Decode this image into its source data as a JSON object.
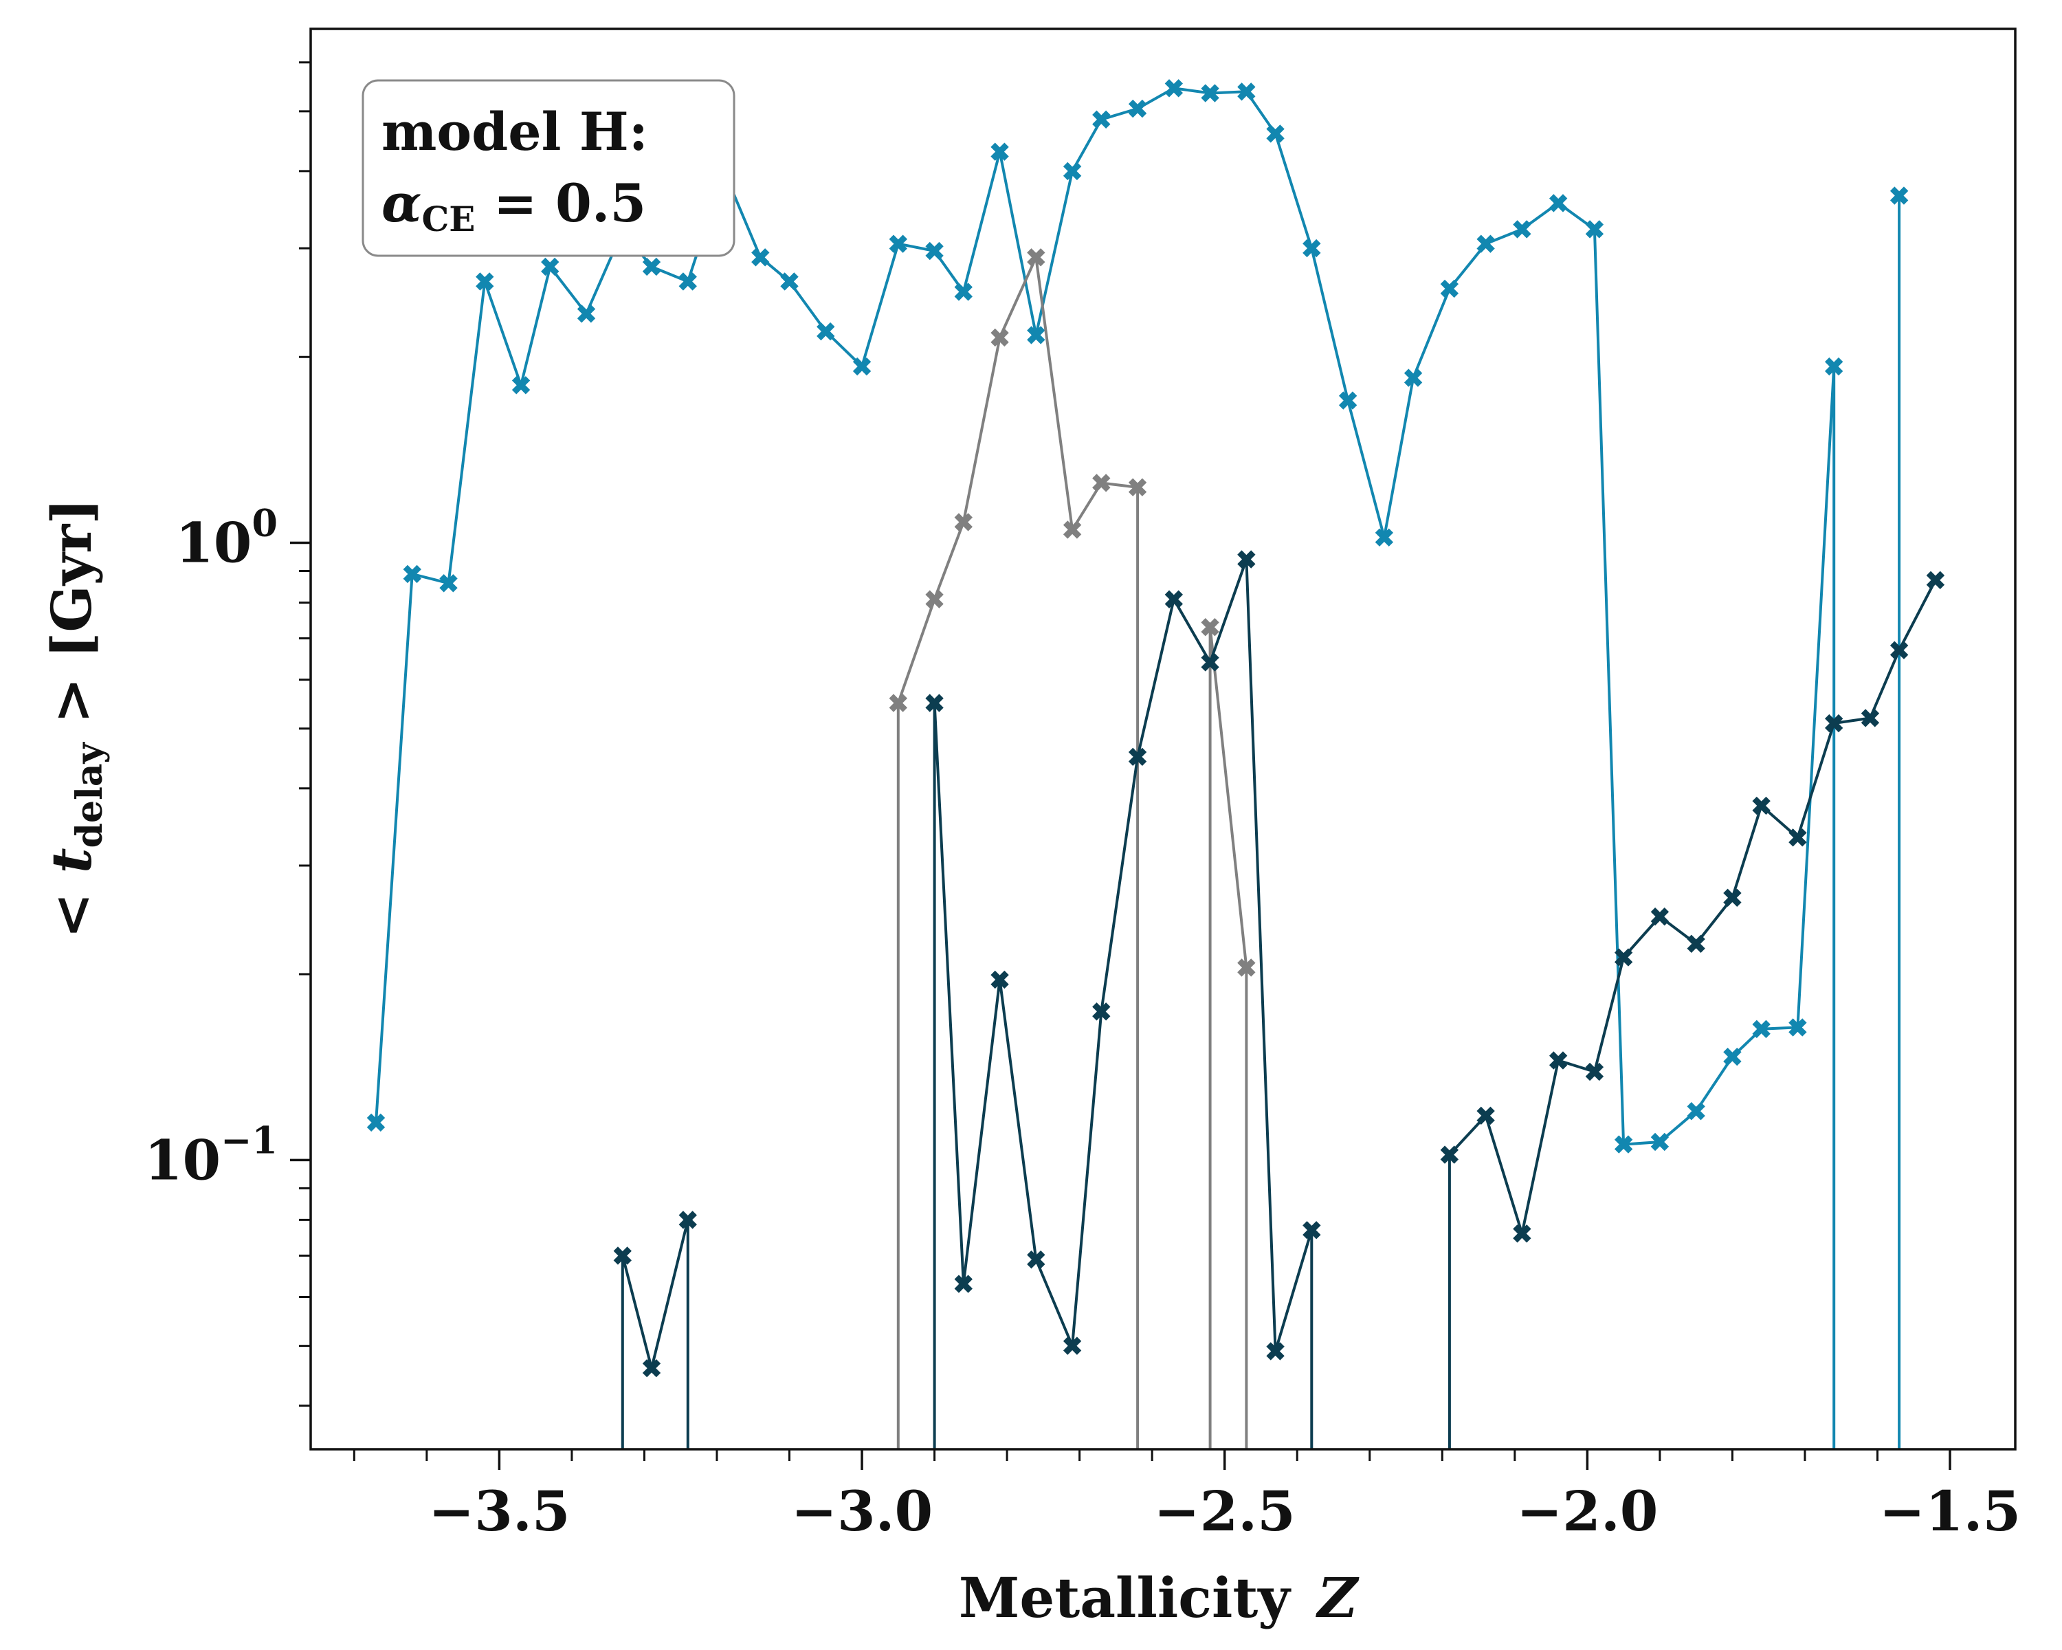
{
  "chart_data": {
    "type": "line",
    "xlabel": "Metallicity",
    "xlabel_symbol": "Z",
    "ylabel_prefix": "< t",
    "ylabel_sub": "delay",
    "ylabel_suffix": " >  [Gyr]",
    "y_scale": "log",
    "xlim": [
      -3.76,
      -1.41
    ],
    "ylim": [
      0.034,
      6.8
    ],
    "x_ticks": [
      {
        "value": -3.5,
        "label": "−3.5"
      },
      {
        "value": -3.0,
        "label": "−3.0"
      },
      {
        "value": -2.5,
        "label": "−2.5"
      },
      {
        "value": -2.0,
        "label": "−2.0"
      },
      {
        "value": -1.5,
        "label": "−1.5"
      }
    ],
    "y_ticks": [
      {
        "value": 1.0,
        "base": "10",
        "exp": "0"
      },
      {
        "value": 0.1,
        "base": "10",
        "exp": "−1"
      }
    ],
    "grid": false,
    "legend": {
      "placement": "top-left",
      "line1": "model H:",
      "line2_symbol": "α",
      "line2_sub": "CE",
      "line2_rest": " = 0.5"
    },
    "series": [
      {
        "color": "#1287b0",
        "points": [
          [
            -3.67,
            0.115
          ],
          [
            -3.62,
            0.89
          ],
          [
            -3.57,
            0.86
          ],
          [
            -3.52,
            2.65
          ],
          [
            -3.47,
            1.8
          ],
          [
            -3.43,
            2.8
          ],
          [
            -3.38,
            2.35
          ],
          [
            -3.33,
            3.2
          ],
          [
            -3.29,
            2.8
          ],
          [
            -3.24,
            2.65
          ],
          [
            -3.19,
            4.0
          ],
          [
            -3.14,
            2.9
          ],
          [
            -3.1,
            2.65
          ],
          [
            -3.05,
            2.2
          ],
          [
            -3.0,
            1.93
          ],
          [
            -2.95,
            3.05
          ],
          [
            -2.9,
            2.97
          ],
          [
            -2.86,
            2.55
          ],
          [
            -2.81,
            4.3
          ],
          [
            -2.76,
            2.17
          ],
          [
            -2.71,
            4.0
          ],
          [
            -2.67,
            4.85
          ],
          [
            -2.62,
            5.05
          ],
          [
            -2.57,
            5.45
          ],
          [
            -2.52,
            5.35
          ],
          [
            -2.47,
            5.38
          ],
          [
            -2.43,
            4.6
          ],
          [
            -2.38,
            3.0
          ],
          [
            -2.33,
            1.7
          ],
          [
            -2.28,
            1.02
          ],
          [
            -2.24,
            1.85
          ],
          [
            -2.19,
            2.58
          ],
          [
            -2.14,
            3.05
          ],
          [
            -2.09,
            3.22
          ],
          [
            -2.04,
            3.55
          ],
          [
            -1.99,
            3.22
          ],
          [
            -1.95,
            0.106
          ],
          [
            -1.9,
            0.107
          ],
          [
            -1.85,
            0.12
          ],
          [
            -1.8,
            0.147
          ],
          [
            -1.76,
            0.163
          ],
          [
            -1.71,
            0.164
          ],
          [
            -1.66,
            1.93
          ],
          [
            -1.66,
            0.034
          ],
          null,
          [
            -1.57,
            0.034
          ],
          [
            -1.57,
            3.65
          ]
        ]
      },
      {
        "color": "#808080",
        "points": [
          [
            -2.95,
            0.034
          ],
          [
            -2.95,
            0.55
          ],
          [
            -2.9,
            0.81
          ],
          [
            -2.86,
            1.08
          ],
          [
            -2.81,
            2.15
          ],
          [
            -2.76,
            2.9
          ],
          [
            -2.71,
            1.05
          ],
          [
            -2.67,
            1.25
          ],
          [
            -2.62,
            1.23
          ],
          [
            -2.62,
            0.034
          ],
          null,
          [
            -2.52,
            0.034
          ],
          [
            -2.52,
            0.73
          ],
          [
            -2.47,
            0.205
          ],
          [
            -2.47,
            0.034
          ]
        ]
      },
      {
        "color": "#0c3d50",
        "points": [
          [
            -3.33,
            0.034
          ],
          [
            -3.33,
            0.07
          ],
          [
            -3.29,
            0.046
          ],
          [
            -3.24,
            0.08
          ],
          [
            -3.24,
            0.034
          ],
          null,
          [
            -2.9,
            0.034
          ],
          [
            -2.9,
            0.55
          ],
          [
            -2.86,
            0.063
          ],
          [
            -2.81,
            0.196
          ],
          [
            -2.76,
            0.069
          ],
          [
            -2.71,
            0.05
          ],
          [
            -2.67,
            0.174
          ],
          [
            -2.62,
            0.45
          ],
          [
            -2.57,
            0.81
          ],
          [
            -2.52,
            0.64
          ],
          [
            -2.47,
            0.94
          ],
          [
            -2.43,
            0.049
          ],
          [
            -2.38,
            0.077
          ],
          [
            -2.38,
            0.034
          ],
          null,
          [
            -2.19,
            0.034
          ],
          [
            -2.19,
            0.102
          ],
          [
            -2.14,
            0.118
          ],
          [
            -2.09,
            0.076
          ],
          [
            -2.04,
            0.145
          ],
          [
            -1.99,
            0.139
          ],
          [
            -1.95,
            0.213
          ],
          [
            -1.9,
            0.248
          ],
          [
            -1.85,
            0.224
          ],
          [
            -1.8,
            0.266
          ],
          [
            -1.76,
            0.375
          ],
          [
            -1.71,
            0.333
          ],
          [
            -1.66,
            0.51
          ],
          [
            -1.61,
            0.52
          ],
          [
            -1.57,
            0.67
          ],
          [
            -1.52,
            0.87
          ]
        ]
      }
    ]
  }
}
